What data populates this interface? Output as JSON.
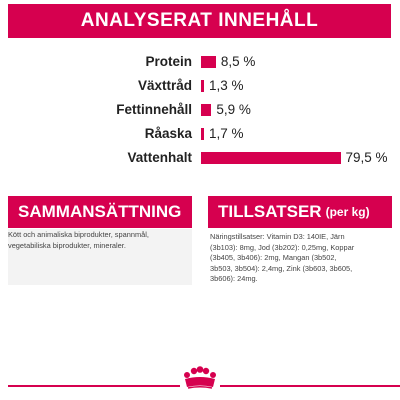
{
  "header": {
    "title": "ANALYSERAT INNEHÅLL"
  },
  "chart_data": {
    "type": "bar",
    "categories": [
      "Protein",
      "Växttråd",
      "Fettinnehåll",
      "Råaska",
      "Vattenhalt"
    ],
    "values": [
      8.5,
      1.3,
      5.9,
      1.7,
      79.5
    ],
    "value_labels": [
      "8,5 %",
      "1,3 %",
      "5,9 %",
      "1,7 %",
      "79,5 %"
    ],
    "orientation": "horizontal",
    "unit": "%",
    "bar_color": "#d6004f"
  },
  "composition": {
    "title": "SAMMANSÄTTNING",
    "text": "Kött och animaliska biprodukter, spannmål, vegetabiliska biprodukter, mineraler."
  },
  "additives": {
    "title": "TILLSATSER",
    "title_suffix": "(per kg)",
    "text": "Näringstillsatser: Vitamin D3: 140IE, Järn (3b103): 8mg, Jod (3b202): 0,25mg, Koppar (3b405, 3b406): 2mg, Mangan (3b502, 3b503, 3b504): 2,4mg, Zink (3b603, 3b605, 3b606): 24mg."
  },
  "colors": {
    "accent": "#d6004f",
    "panel_bg": "#f3f3f3"
  },
  "footer": {
    "logo": "royal-canin-crown-logo"
  }
}
